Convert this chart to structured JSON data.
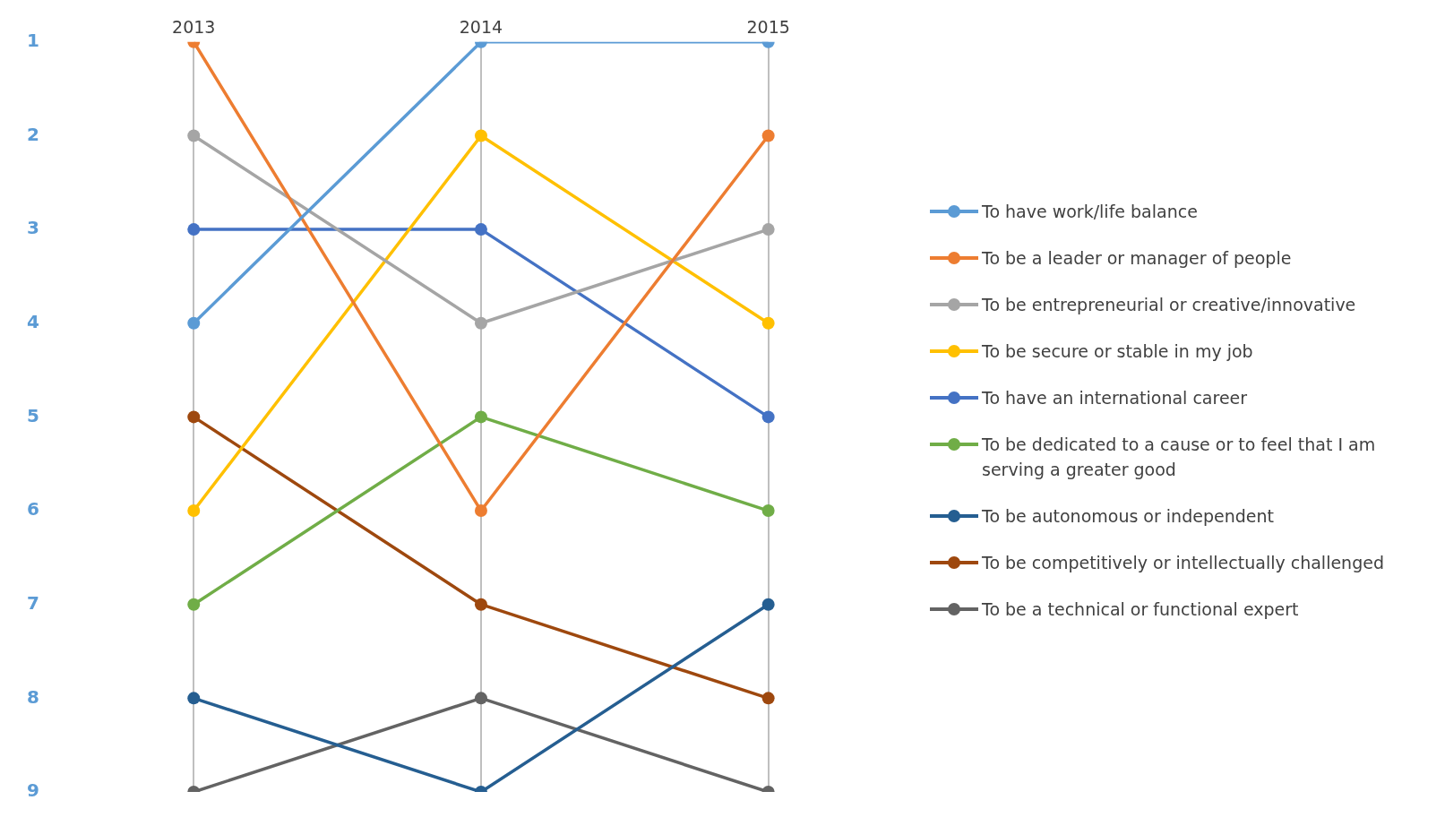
{
  "chart_data": {
    "type": "line",
    "categories": [
      "2013",
      "2014",
      "2015"
    ],
    "ylim": [
      9,
      1
    ],
    "yticks": [
      1,
      2,
      3,
      4,
      5,
      6,
      7,
      8,
      9
    ],
    "grid": "x",
    "legend": "right",
    "marker": "circle",
    "line_style": "solid",
    "series": [
      {
        "name": "To have work/life balance",
        "color": "#5b9bd5",
        "values": [
          4,
          1,
          1
        ]
      },
      {
        "name": "To be a leader or manager of people",
        "color": "#ed7d31",
        "values": [
          1,
          6,
          2
        ]
      },
      {
        "name": "To be entrepreneurial or creative/innovative",
        "color": "#a5a5a5",
        "values": [
          2,
          4,
          3
        ]
      },
      {
        "name": "To be secure or stable in my job",
        "color": "#ffc000",
        "values": [
          6,
          2,
          4
        ]
      },
      {
        "name": "To have an international career",
        "color": "#4472c4",
        "values": [
          3,
          3,
          5
        ]
      },
      {
        "name": "To be dedicated to a cause or to feel that I am serving a greater good",
        "color": "#70ad47",
        "values": [
          7,
          5,
          6
        ]
      },
      {
        "name": "To be autonomous or independent",
        "color": "#255e91",
        "values": [
          8,
          9,
          7
        ]
      },
      {
        "name": "To be competitively or intellectually challenged",
        "color": "#9e480e",
        "values": [
          5,
          7,
          8
        ]
      },
      {
        "name": "To be a technical or functional expert",
        "color": "#636363",
        "values": [
          9,
          8,
          9
        ]
      }
    ]
  }
}
